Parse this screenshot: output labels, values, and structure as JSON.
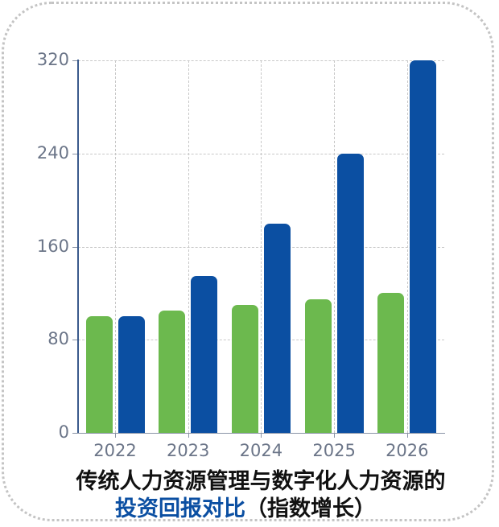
{
  "chart_data": {
    "type": "bar",
    "title": "传统人力资源管理与数字化人力资源的投资回报对比（指数增长）",
    "title_line1": "传统人力资源管理与数字化人力资源的",
    "title_line2_highlight": "投资回报对比",
    "title_line2_rest": "（指数增长）",
    "categories": [
      "2022",
      "2023",
      "2024",
      "2025",
      "2026"
    ],
    "series": [
      {
        "name": "传统人力资源管理",
        "color": "#6cb94e",
        "values": [
          100,
          105,
          110,
          115,
          120
        ]
      },
      {
        "name": "数字化人力资源",
        "color": "#0b4fa2",
        "values": [
          100,
          135,
          180,
          240,
          320
        ]
      }
    ],
    "xlabel": "",
    "ylabel": "",
    "ylim": [
      0,
      320
    ],
    "yticks": [
      "0",
      "80",
      "160",
      "240",
      "320"
    ],
    "grid": true,
    "legend": "none"
  }
}
